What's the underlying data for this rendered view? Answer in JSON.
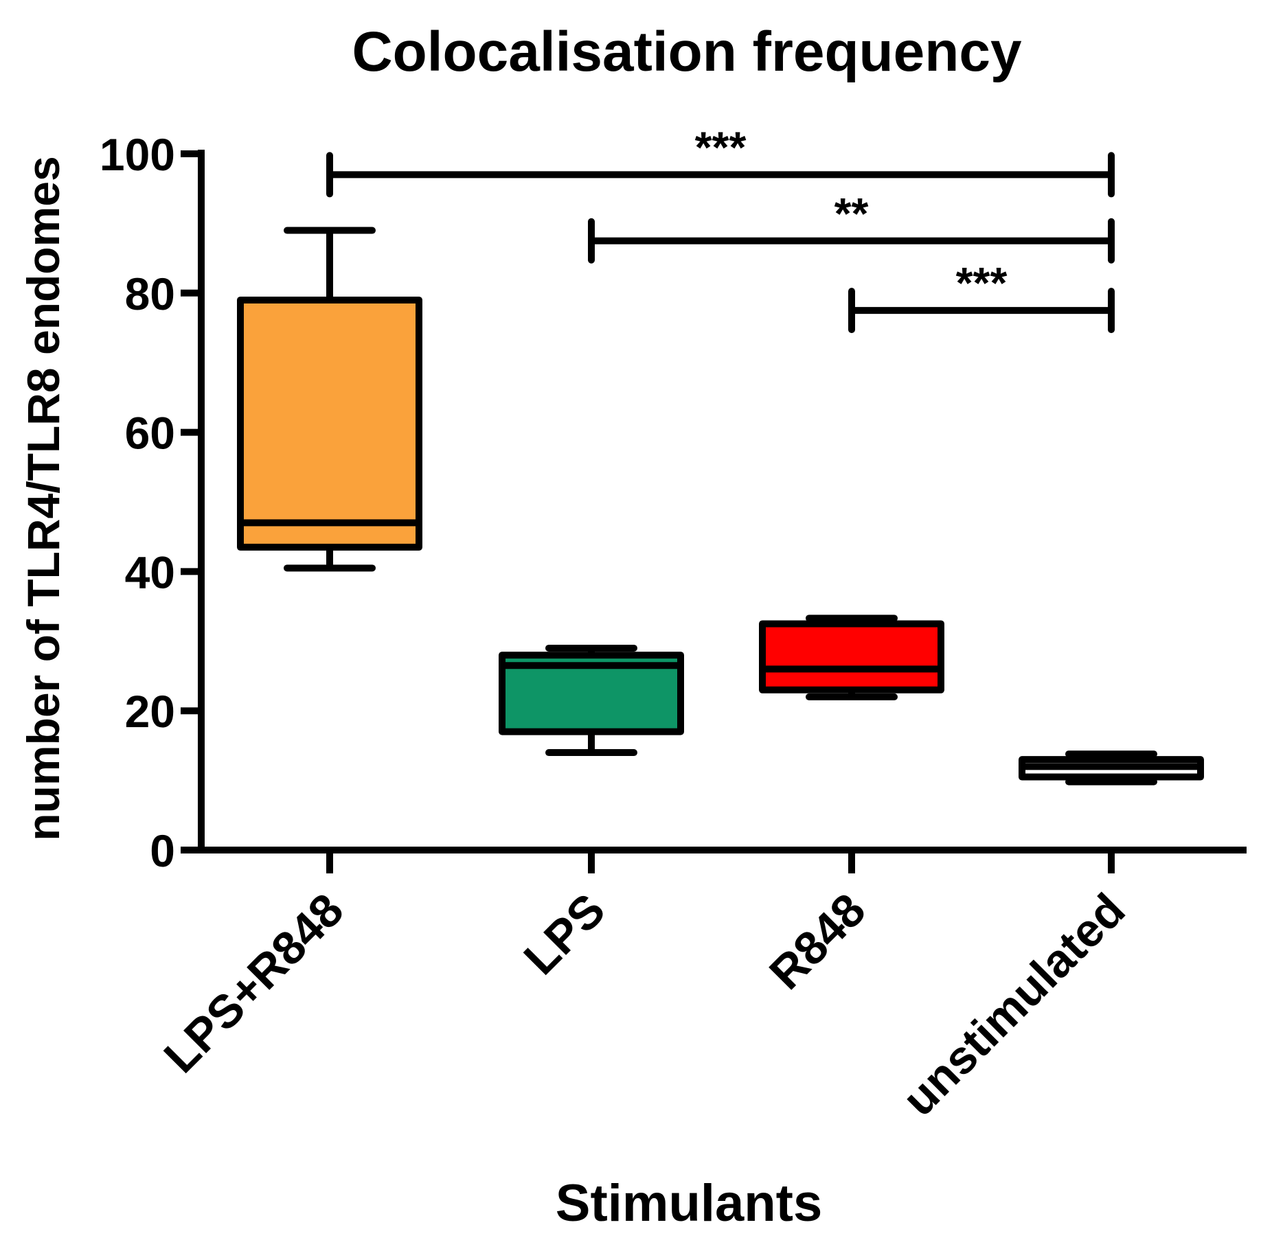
{
  "chart_data": {
    "type": "boxplot",
    "title": "Colocalisation frequency",
    "xlabel": "Stimulants",
    "ylabel": "number of TLR4/TLR8 endomes",
    "ylim": [
      0,
      100
    ],
    "yticks": [
      0,
      20,
      40,
      60,
      80,
      100
    ],
    "ytick_labels": [
      "0",
      "20",
      "40",
      "60",
      "80",
      "100"
    ],
    "grid": false,
    "categories": [
      "LPS+R848",
      "LPS",
      "R848",
      "unstimulated"
    ],
    "boxes": [
      {
        "name": "LPS+R848",
        "min": 40.5,
        "q1": 43.5,
        "median": 47,
        "q3": 79,
        "max": 89,
        "color": "#FAA23B"
      },
      {
        "name": "LPS",
        "min": 14,
        "q1": 17,
        "median": 26.5,
        "q3": 28,
        "max": 29,
        "color": "#0E9566"
      },
      {
        "name": "R848",
        "min": 22,
        "q1": 23,
        "median": 26,
        "q3": 32.5,
        "max": 33.3,
        "color": "#FF0000"
      },
      {
        "name": "unstimulated",
        "min": 9.8,
        "q1": 10.5,
        "median": 12,
        "q3": 13,
        "max": 13.8,
        "color": "#FFFFFF"
      }
    ],
    "significance": [
      {
        "from": "LPS+R848",
        "to": "unstimulated",
        "y": 97,
        "label": "***"
      },
      {
        "from": "LPS",
        "to": "unstimulated",
        "y": 87.5,
        "label": "**"
      },
      {
        "from": "R848",
        "to": "unstimulated",
        "y": 77.5,
        "label": "***"
      }
    ]
  }
}
